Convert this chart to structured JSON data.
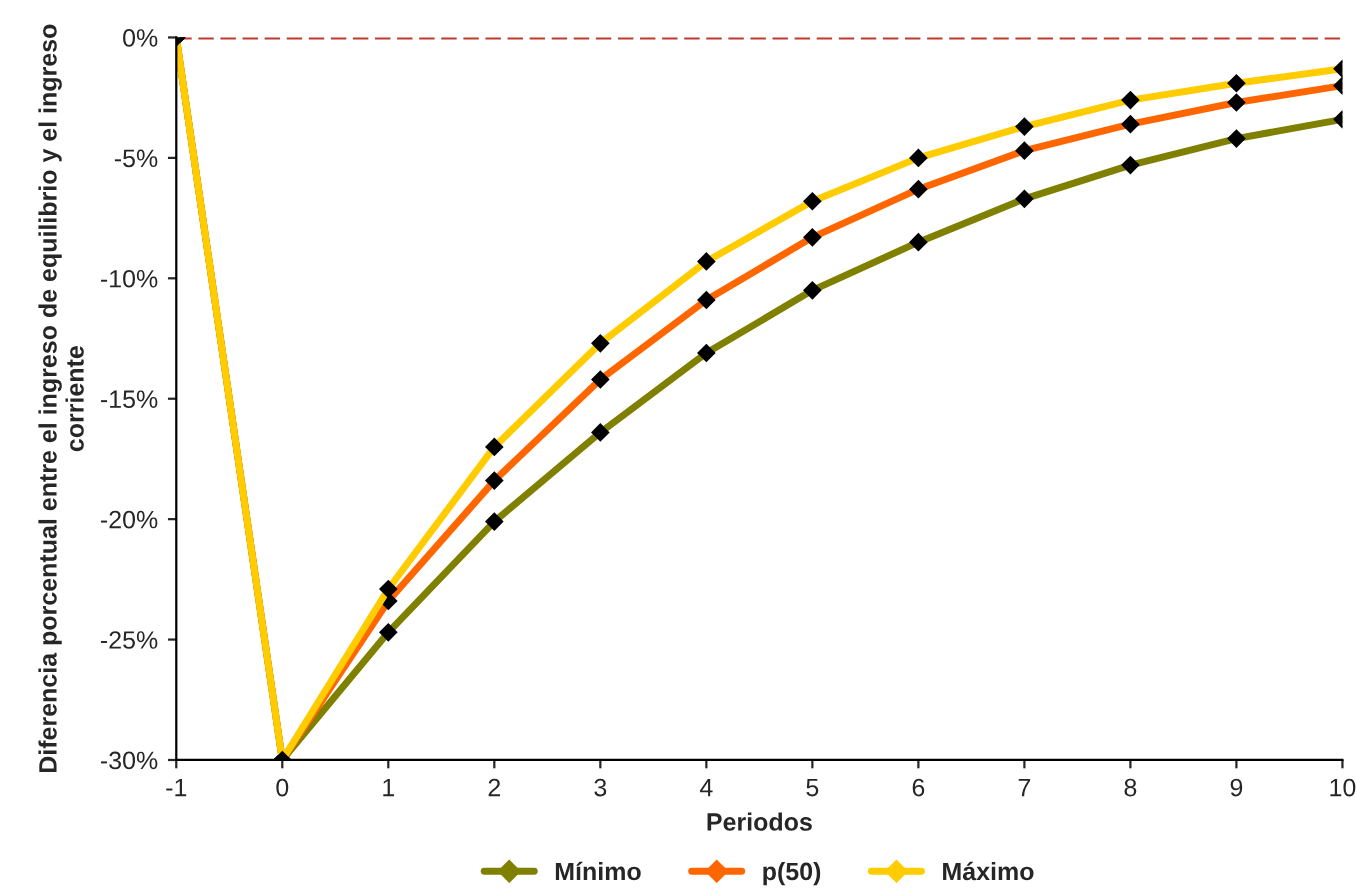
{
  "chart_data": {
    "type": "line",
    "xlabel": "Periodos",
    "ylabel": "Diferencia porcentual entre el ingreso de equilibrio y el ingreso corriente",
    "x": [
      -1,
      0,
      1,
      2,
      3,
      4,
      5,
      6,
      7,
      8,
      9,
      10
    ],
    "series": [
      {
        "name": "Mínimo",
        "color": "#808000",
        "values": [
          0,
          -30,
          -24.7,
          -20.1,
          -16.4,
          -13.1,
          -10.5,
          -8.5,
          -6.7,
          -5.3,
          -4.2,
          -3.4
        ]
      },
      {
        "name": "p(50)",
        "color": "#ff6600",
        "values": [
          0,
          -30,
          -23.4,
          -18.4,
          -14.2,
          -10.9,
          -8.3,
          -6.3,
          -4.7,
          -3.6,
          -2.7,
          -2.0
        ]
      },
      {
        "name": "Máximo",
        "color": "#ffcc00",
        "values": [
          0,
          -30,
          -22.9,
          -17.0,
          -12.7,
          -9.3,
          -6.8,
          -5.0,
          -3.7,
          -2.6,
          -1.9,
          -1.3
        ]
      }
    ],
    "xlim": [
      -1,
      10
    ],
    "xticks": [
      -1,
      0,
      1,
      2,
      3,
      4,
      5,
      6,
      7,
      8,
      9,
      10
    ],
    "ylim": [
      -30,
      0
    ],
    "yticks": [
      {
        "value": -30,
        "label": "-30%"
      },
      {
        "value": -25,
        "label": "-25%"
      },
      {
        "value": -20,
        "label": "-20%"
      },
      {
        "value": -15,
        "label": "-15%"
      },
      {
        "value": -10,
        "label": "-10%"
      },
      {
        "value": -5,
        "label": "-5%"
      },
      {
        "value": 0,
        "label": "0%"
      }
    ],
    "ref_lines": [
      {
        "axis": "y",
        "value": 0,
        "label": null,
        "color": "#c0392b",
        "line_style": "dashed"
      }
    ],
    "marker": "diamond",
    "line_style": "solid",
    "grid": false,
    "legend": "bottom"
  }
}
